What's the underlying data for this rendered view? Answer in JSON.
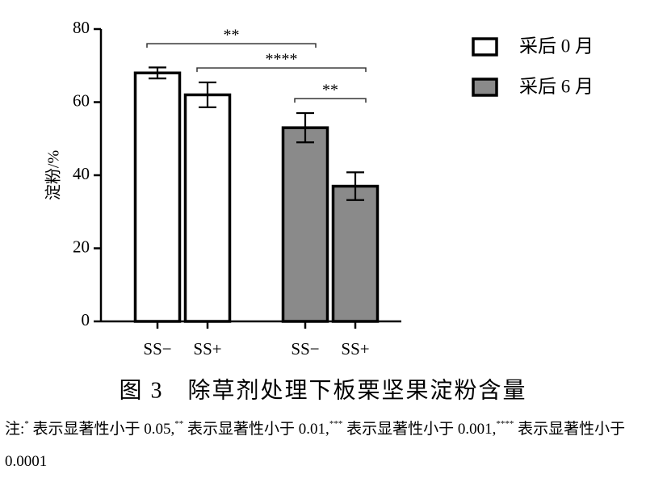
{
  "chart_data": {
    "type": "bar",
    "ylabel": "淀粉/%",
    "categories": [
      "SS−",
      "SS+",
      "SS−",
      "SS+"
    ],
    "series": [
      {
        "name": "采后 0 月",
        "color": "#ffffff",
        "values": [
          68,
          62,
          null,
          null
        ],
        "errors": [
          1.5,
          3.4,
          null,
          null
        ]
      },
      {
        "name": "采后 6 月",
        "color": "#8a8a8a",
        "values": [
          null,
          null,
          53,
          37
        ],
        "errors": [
          null,
          null,
          4,
          3.8
        ]
      }
    ],
    "ylim": [
      0,
      80
    ],
    "yticks": [
      0,
      20,
      40,
      60,
      80
    ],
    "legend": "upper right",
    "significance": [
      {
        "label": "**",
        "from": 0,
        "to": 2
      },
      {
        "label": "****",
        "from": 1,
        "to": 3
      },
      {
        "label": "**",
        "from": 2,
        "to": 3
      }
    ],
    "caption": "图 3　除草剂处理下板栗坚果淀粉含量",
    "note": [
      "注:",
      "*",
      " 表示显著性小于 0.05,",
      "**",
      " 表示显著性小于 0.01,",
      "***",
      " 表示显著性小于 0.001,",
      "****",
      " 表示显著性小于 0.0001"
    ]
  }
}
